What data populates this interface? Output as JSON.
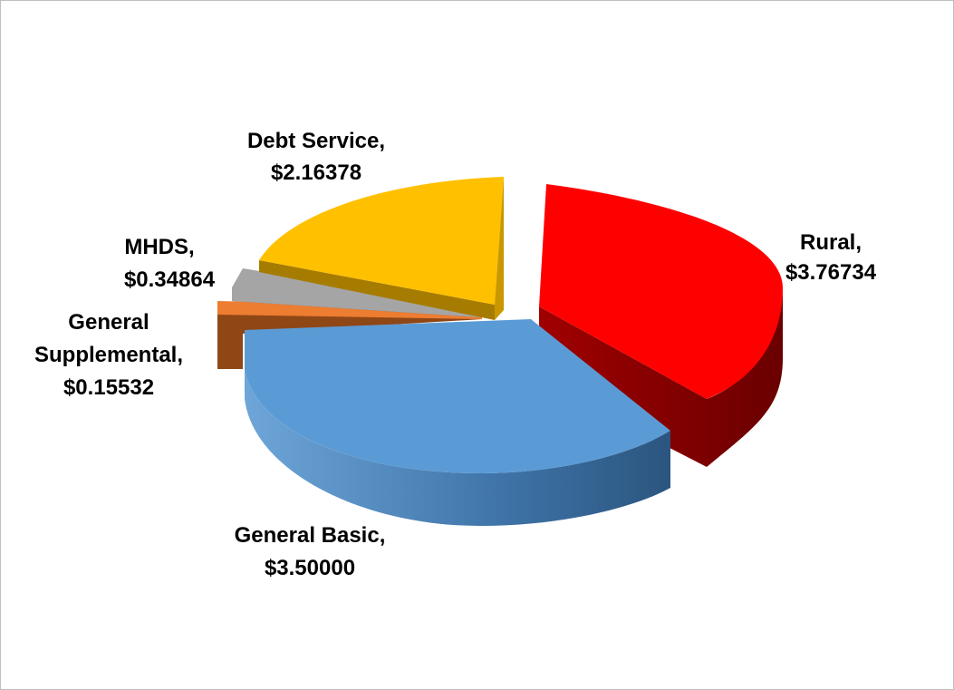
{
  "chart_data": {
    "type": "pie",
    "title": "",
    "slices": [
      {
        "name": "Rural",
        "value": 3.76734,
        "label_name": "Rural,",
        "label_value": "$3.76734",
        "color": "#ff0000",
        "side_color": "#8b0000"
      },
      {
        "name": "General Basic",
        "value": 3.5,
        "label_name": "General Basic,",
        "label_value": "$3.50000",
        "color": "#5b9bd5",
        "side_color": "#3a6a99"
      },
      {
        "name": "General Supplemental",
        "value": 0.15532,
        "label_name": "General Supplemental,",
        "label_value": "$0.15532",
        "color": "#ed7d31",
        "side_color": "#8f4716"
      },
      {
        "name": "MHDS",
        "value": 0.34864,
        "label_name": "MHDS,",
        "label_value": "$0.34864",
        "color": "#a5a5a5",
        "side_color": "#616161"
      },
      {
        "name": "Debt Service",
        "value": 2.16378,
        "label_name": "Debt Service,",
        "label_value": "$2.16378",
        "color": "#ffc000",
        "side_color": "#a67c00"
      }
    ],
    "exploded": [
      "Rural",
      "General Supplemental"
    ],
    "style": "3d-pie",
    "legend": "none"
  }
}
